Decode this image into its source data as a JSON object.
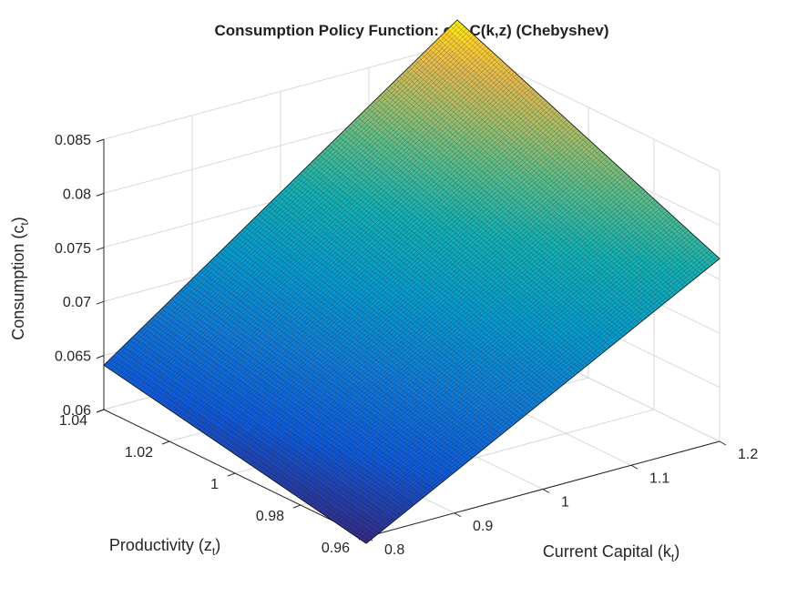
{
  "chart_data": {
    "type": "surface",
    "title": "Consumption Policy Function: c = C(k,z) (Chebyshev)",
    "xlabel": {
      "main": "Current  Capital  (k",
      "sub": "t",
      "close": ")"
    },
    "ylabel": {
      "main": "Productivity  (z",
      "sub": "t",
      "close": ")"
    },
    "zlabel": {
      "main": "Consumption  (c",
      "sub": "t",
      "close": ")"
    },
    "x_ticks": [
      "0.8",
      "0.9",
      "1",
      "1.1",
      "1.2"
    ],
    "y_ticks": [
      "0.96",
      "0.98",
      "1",
      "1.02",
      "1.04"
    ],
    "z_ticks": [
      "0.06",
      "0.065",
      "0.07",
      "0.075",
      "0.08",
      "0.085"
    ],
    "xlim": [
      0.8,
      1.2
    ],
    "ylim": [
      0.96,
      1.04
    ],
    "zlim": [
      0.06,
      0.085
    ],
    "corners": [
      {
        "k": 0.8,
        "z": 1.04,
        "c": 0.0641
      },
      {
        "k": 0.8,
        "z": 0.96,
        "c": 0.0594
      },
      {
        "k": 1.2,
        "z": 0.96,
        "c": 0.0769
      },
      {
        "k": 1.2,
        "z": 1.04,
        "c": 0.0872
      }
    ],
    "colormap": "parula",
    "grid": true
  }
}
